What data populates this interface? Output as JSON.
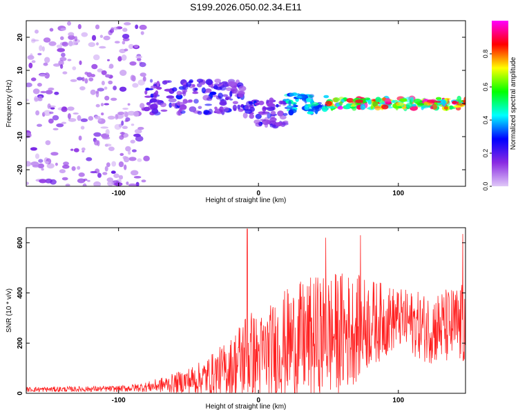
{
  "title": "S199.2026.050.02.34.E11",
  "chart_data": [
    {
      "type": "heatmap",
      "xlabel": "Height of straight line (km)",
      "ylabel": "Frequency (Hz)",
      "xlim": [
        -166,
        148
      ],
      "ylim": [
        -25,
        25
      ],
      "xticks": [
        -100,
        0,
        100
      ],
      "yticks": [
        -20,
        -10,
        0,
        10,
        20
      ],
      "colorbar": {
        "label": "Normalized spectral amplitude",
        "range": [
          0,
          1
        ],
        "ticks": [
          0.0,
          0.2,
          0.4,
          0.6,
          0.8
        ],
        "tick_labels": [
          "0.0",
          "0.2",
          "0.4",
          "0.6",
          "0.8"
        ],
        "colors": [
          "#e0c8f8",
          "#8a2be2",
          "#0000ff",
          "#00ffff",
          "#00ff00",
          "#ffff00",
          "#ff0000",
          "#ff00ff"
        ]
      },
      "regions": [
        {
          "x": [
            -166,
            -80
          ],
          "freq_center": 0,
          "freq_spread": 25,
          "amplitude": [
            0.02,
            0.18
          ],
          "description": "noise"
        },
        {
          "x": [
            -80,
            -10
          ],
          "freq_center": 2,
          "freq_spread": 5,
          "amplitude": [
            0.1,
            0.3
          ]
        },
        {
          "x": [
            -10,
            20
          ],
          "freq_center": -3,
          "freq_spread": 4,
          "amplitude": [
            0.1,
            0.3
          ]
        },
        {
          "x": [
            20,
            50
          ],
          "freq_center": 0,
          "freq_spread": 3,
          "amplitude": [
            0.3,
            0.5
          ]
        },
        {
          "x": [
            50,
            148
          ],
          "freq_center": 0,
          "freq_spread": 1.5,
          "amplitude": [
            0.4,
            1.0
          ]
        }
      ]
    },
    {
      "type": "line",
      "xlabel": "Height of straight line (km)",
      "ylabel": "SNR (10 * v/v)",
      "xlim": [
        -166,
        148
      ],
      "ylim": [
        0,
        660
      ],
      "xticks": [
        -100,
        0,
        100
      ],
      "yticks": [
        0,
        200,
        400,
        600
      ],
      "color": "#ff2020",
      "envelope": [
        {
          "x": -166,
          "base": 15,
          "spread": 10
        },
        {
          "x": -100,
          "base": 18,
          "spread": 12
        },
        {
          "x": -80,
          "base": 25,
          "spread": 20
        },
        {
          "x": -60,
          "base": 40,
          "spread": 40
        },
        {
          "x": -40,
          "base": 60,
          "spread": 70
        },
        {
          "x": -20,
          "base": 100,
          "spread": 120
        },
        {
          "x": -8,
          "base": 150,
          "spread": 200
        },
        {
          "x": 0,
          "base": 140,
          "spread": 170
        },
        {
          "x": 20,
          "base": 200,
          "spread": 220
        },
        {
          "x": 40,
          "base": 220,
          "spread": 250
        },
        {
          "x": 60,
          "base": 240,
          "spread": 250
        },
        {
          "x": 80,
          "base": 280,
          "spread": 180
        },
        {
          "x": 100,
          "base": 300,
          "spread": 120
        },
        {
          "x": 120,
          "base": 260,
          "spread": 140
        },
        {
          "x": 148,
          "base": 270,
          "spread": 170
        }
      ],
      "peaks": [
        {
          "x": -8,
          "y": 655
        },
        {
          "x": 48,
          "y": 620
        },
        {
          "x": 73,
          "y": 630
        },
        {
          "x": 146,
          "y": 635
        }
      ]
    }
  ]
}
